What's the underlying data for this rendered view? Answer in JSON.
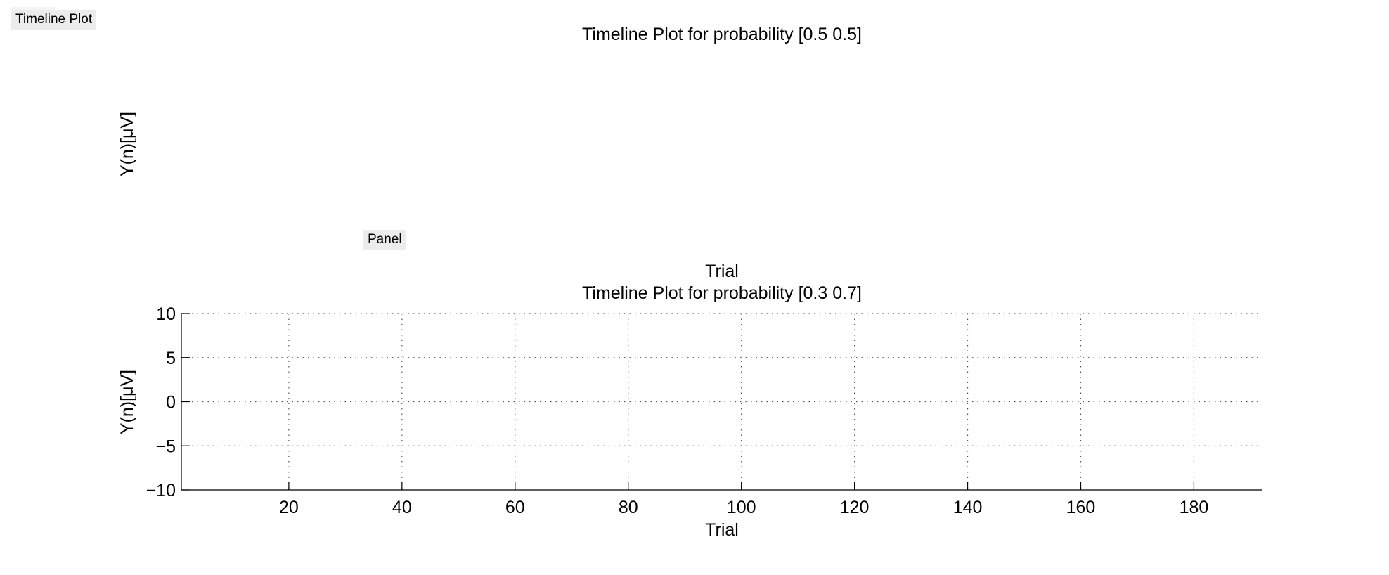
{
  "ui": {
    "tab_label": "Timeline Plot",
    "panel_label": "Panel"
  },
  "chart_data": [
    {
      "type": "line",
      "title": "Timeline Plot for probability [0.5 0.5]",
      "xlabel": "Trial",
      "ylabel": "Y(n)[μV]",
      "series": [],
      "axes_visible": false
    },
    {
      "type": "line",
      "title": "Timeline Plot for probability [0.3 0.7]",
      "xlabel": "Trial",
      "ylabel": "Y(n)[μV]",
      "xlim": [
        1,
        192
      ],
      "ylim": [
        -10,
        10
      ],
      "xticks": [
        20,
        40,
        60,
        80,
        100,
        120,
        140,
        160,
        180
      ],
      "yticks": [
        10,
        5,
        0,
        -5,
        -10
      ],
      "xtick_labels": [
        "20",
        "40",
        "60",
        "80",
        "100",
        "120",
        "140",
        "160",
        "180"
      ],
      "ytick_labels": [
        "10",
        "5",
        "0",
        "−5",
        "−10"
      ],
      "grid": true,
      "series": []
    }
  ]
}
